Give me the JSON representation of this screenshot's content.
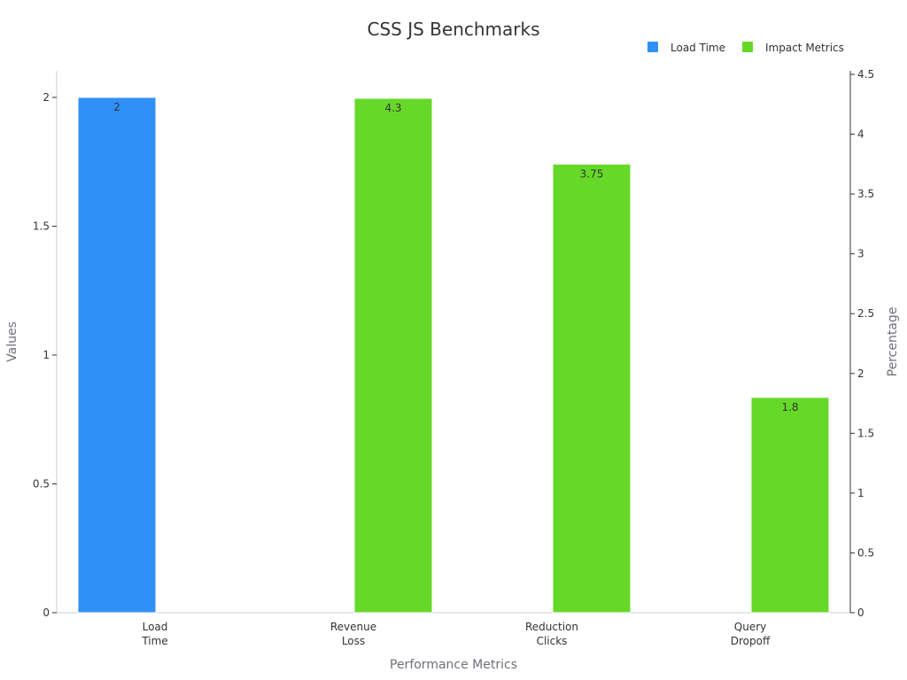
{
  "chart_data": {
    "type": "bar",
    "title": "CSS JS Benchmarks",
    "xlabel": "Performance Metrics",
    "ylabel": "Values",
    "ylabel_right": "Percentage",
    "categories": [
      [
        "Load",
        "Time"
      ],
      [
        "Revenue",
        "Loss"
      ],
      [
        "Reduction",
        "Clicks"
      ],
      [
        "Query",
        "Dropoff"
      ]
    ],
    "ylim": [
      0,
      2
    ],
    "ylim_right": [
      0,
      4.5
    ],
    "yticks": [
      "0",
      "0.5",
      "1",
      "1.5",
      "2"
    ],
    "yticks_right": [
      "0",
      "0.5",
      "1",
      "1.5",
      "2",
      "2.5",
      "3",
      "3.5",
      "4",
      "4.5"
    ],
    "legend_position": "top-right",
    "series": [
      {
        "name": "Load Time",
        "axis": "left",
        "color": "#2f90f8",
        "values": [
          2,
          null,
          null,
          null
        ]
      },
      {
        "name": "Impact Metrics",
        "axis": "right",
        "color": "#66d928",
        "values": [
          null,
          4.3,
          3.75,
          1.8
        ]
      }
    ]
  }
}
